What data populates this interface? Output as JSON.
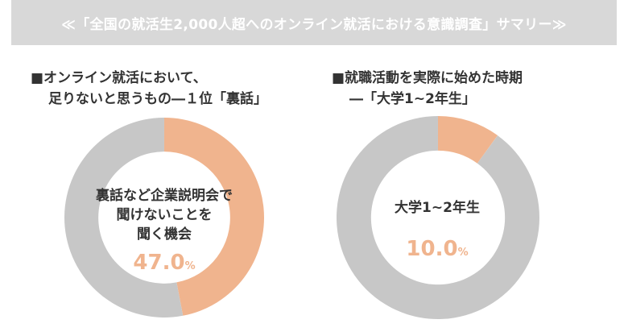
{
  "banner": {
    "text": "≪「全国の就活生2,000人超へのオンライン就活における意識調査」サマリー≫"
  },
  "colors": {
    "accent": "#f0b48e",
    "remainder": "#c7c7c7",
    "banner_bg": "#d8d8d8"
  },
  "chart_data": [
    {
      "type": "pie",
      "title_lines": [
        "■オンライン就活において、",
        "足りないと思うもの―１位「裏話」"
      ],
      "center_label_lines": [
        "裏話など企業説明会で",
        "聞けないことを",
        "聞く機会"
      ],
      "value": 47.0,
      "value_text": "47.0",
      "unit": "%",
      "slices": [
        {
          "label": "裏話など企業説明会で聞けないことを聞く機会",
          "value": 47.0,
          "color": "#f0b48e"
        },
        {
          "label": "",
          "value": 53.0,
          "color": "#c7c7c7"
        }
      ]
    },
    {
      "type": "pie",
      "title_lines": [
        "■就職活動を実際に始めた時期",
        "―「大学1~2年生」"
      ],
      "center_label_lines": [
        "大学1~2年生"
      ],
      "value": 10.0,
      "value_text": "10.0",
      "unit": "%",
      "slices": [
        {
          "label": "大学1~2年生",
          "value": 10.0,
          "color": "#f0b48e"
        },
        {
          "label": "",
          "value": 90.0,
          "color": "#c7c7c7"
        }
      ]
    }
  ]
}
